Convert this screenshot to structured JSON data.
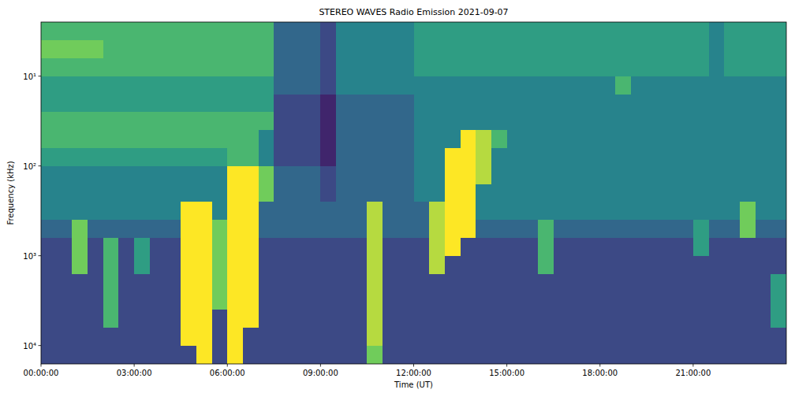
{
  "chart_data": {
    "type": "heatmap",
    "title": "STEREO WAVES Radio Emission 2021-09-07",
    "x_label": "Time (UT)",
    "y_label": "Frequency (kHz)",
    "log": "y",
    "xlim": [
      0,
      24
    ],
    "ylim": [
      16025,
      2.5
    ],
    "xticks": [
      {
        "value": 0,
        "label": "00:00:00"
      },
      {
        "value": 3,
        "label": "03:00:00"
      },
      {
        "value": 6,
        "label": "06:00:00"
      },
      {
        "value": 9,
        "label": "09:00:00"
      },
      {
        "value": 12,
        "label": "12:00:00"
      },
      {
        "value": 15,
        "label": "15:00:00"
      },
      {
        "value": 18,
        "label": "18:00:00"
      },
      {
        "value": 21,
        "label": "21:00:00"
      }
    ],
    "yticks": [
      {
        "value": 10,
        "label": "10¹"
      },
      {
        "value": 100,
        "label": "10²"
      },
      {
        "value": 1000,
        "label": "10³"
      },
      {
        "value": 10000,
        "label": "10⁴"
      }
    ],
    "x": [
      0,
      0.5,
      1,
      1.5,
      2,
      2.5,
      3,
      3.5,
      4,
      4.5,
      5,
      5.5,
      6,
      6.5,
      7,
      7.5,
      8,
      8.5,
      9,
      9.5,
      10,
      10.5,
      11,
      11.5,
      12,
      12.5,
      13,
      13.5,
      14,
      14.5,
      15,
      15.5,
      16,
      16.5,
      17,
      17.5,
      18,
      18.5,
      19,
      19.5,
      20,
      20.5,
      21,
      21.5,
      22,
      22.5,
      23,
      23.5,
      24
    ],
    "y": [
      2.5,
      4,
      6.3,
      10,
      16,
      25,
      40,
      63,
      100,
      160,
      250,
      400,
      630,
      1000,
      1600,
      2500,
      4000,
      6300,
      10000,
      16025
    ],
    "color_range": [
      0,
      9
    ],
    "values": [
      [
        6,
        6,
        6,
        6,
        6,
        6,
        6,
        6,
        6,
        6,
        6,
        6,
        6,
        6,
        6,
        3,
        3,
        3,
        2,
        4,
        4,
        4,
        4,
        4,
        5,
        5,
        5,
        5,
        5,
        5,
        5,
        5,
        5,
        5,
        5,
        5,
        5,
        5,
        5,
        5,
        5,
        5,
        5,
        4,
        5,
        5,
        5,
        5
      ],
      [
        7,
        7,
        7,
        7,
        6,
        6,
        6,
        6,
        6,
        6,
        6,
        6,
        6,
        6,
        6,
        3,
        3,
        3,
        2,
        4,
        4,
        4,
        4,
        4,
        5,
        5,
        5,
        5,
        5,
        5,
        5,
        5,
        5,
        5,
        5,
        5,
        5,
        5,
        5,
        5,
        5,
        5,
        5,
        4,
        5,
        5,
        5,
        5
      ],
      [
        6,
        6,
        6,
        6,
        6,
        6,
        6,
        6,
        6,
        6,
        6,
        6,
        6,
        6,
        6,
        3,
        3,
        3,
        2,
        4,
        4,
        4,
        4,
        4,
        5,
        5,
        5,
        5,
        5,
        5,
        5,
        5,
        5,
        5,
        5,
        5,
        5,
        5,
        5,
        5,
        5,
        5,
        5,
        4,
        5,
        5,
        5,
        5
      ],
      [
        5,
        5,
        5,
        5,
        5,
        5,
        5,
        5,
        5,
        5,
        5,
        5,
        5,
        5,
        5,
        3,
        3,
        3,
        2,
        4,
        4,
        4,
        4,
        4,
        4,
        4,
        4,
        4,
        4,
        4,
        4,
        4,
        4,
        4,
        4,
        4,
        4,
        6,
        4,
        4,
        4,
        4,
        4,
        4,
        4,
        4,
        4,
        4
      ],
      [
        5,
        5,
        5,
        5,
        5,
        5,
        5,
        5,
        5,
        5,
        5,
        5,
        5,
        5,
        5,
        2,
        2,
        2,
        1,
        3,
        3,
        3,
        3,
        3,
        4,
        4,
        4,
        4,
        4,
        4,
        4,
        4,
        4,
        4,
        4,
        4,
        4,
        4,
        4,
        4,
        4,
        4,
        4,
        4,
        4,
        4,
        4,
        4
      ],
      [
        6,
        6,
        6,
        6,
        6,
        6,
        6,
        6,
        6,
        6,
        6,
        6,
        6,
        6,
        6,
        2,
        2,
        2,
        1,
        3,
        3,
        3,
        3,
        3,
        4,
        4,
        4,
        4,
        4,
        4,
        4,
        4,
        4,
        4,
        4,
        4,
        4,
        4,
        4,
        4,
        4,
        4,
        4,
        4,
        4,
        4,
        4,
        4
      ],
      [
        6,
        6,
        6,
        6,
        6,
        6,
        6,
        6,
        6,
        6,
        6,
        6,
        6,
        6,
        4,
        2,
        2,
        2,
        1,
        3,
        3,
        3,
        3,
        3,
        4,
        4,
        4,
        9,
        8,
        6,
        4,
        4,
        4,
        4,
        4,
        4,
        4,
        4,
        4,
        4,
        4,
        4,
        4,
        4,
        4,
        4,
        4,
        4
      ],
      [
        5,
        5,
        5,
        5,
        5,
        5,
        5,
        5,
        5,
        5,
        5,
        5,
        6,
        6,
        4,
        2,
        2,
        2,
        1,
        3,
        3,
        3,
        3,
        3,
        4,
        4,
        9,
        9,
        8,
        4,
        4,
        4,
        4,
        4,
        4,
        4,
        4,
        4,
        4,
        4,
        4,
        4,
        4,
        4,
        4,
        4,
        4,
        4
      ],
      [
        4,
        4,
        4,
        4,
        4,
        4,
        4,
        4,
        4,
        4,
        4,
        4,
        9,
        9,
        7,
        3,
        3,
        3,
        2,
        3,
        3,
        3,
        3,
        3,
        4,
        4,
        9,
        9,
        8,
        4,
        4,
        4,
        4,
        4,
        4,
        4,
        4,
        4,
        4,
        4,
        4,
        4,
        4,
        4,
        4,
        4,
        4,
        4
      ],
      [
        4,
        4,
        4,
        4,
        4,
        4,
        4,
        4,
        4,
        4,
        4,
        4,
        9,
        9,
        7,
        3,
        3,
        3,
        2,
        3,
        3,
        3,
        3,
        3,
        4,
        4,
        9,
        9,
        4,
        4,
        4,
        4,
        4,
        4,
        4,
        4,
        4,
        4,
        4,
        4,
        4,
        4,
        4,
        4,
        4,
        4,
        4,
        4
      ],
      [
        4,
        4,
        4,
        4,
        4,
        4,
        4,
        4,
        4,
        9,
        9,
        4,
        9,
        9,
        3,
        3,
        3,
        3,
        3,
        3,
        3,
        8,
        3,
        3,
        3,
        8,
        9,
        9,
        4,
        4,
        4,
        4,
        4,
        4,
        4,
        4,
        4,
        4,
        4,
        4,
        4,
        4,
        4,
        4,
        4,
        7,
        4,
        4
      ],
      [
        3,
        3,
        7,
        3,
        3,
        3,
        3,
        3,
        3,
        9,
        9,
        7,
        9,
        9,
        3,
        3,
        3,
        3,
        3,
        3,
        3,
        8,
        3,
        3,
        3,
        8,
        9,
        9,
        3,
        3,
        3,
        3,
        6,
        3,
        3,
        3,
        3,
        3,
        3,
        3,
        3,
        3,
        5,
        3,
        3,
        7,
        3,
        3
      ],
      [
        2,
        2,
        7,
        2,
        6,
        2,
        5,
        2,
        2,
        9,
        9,
        7,
        9,
        9,
        2,
        2,
        2,
        2,
        2,
        2,
        2,
        8,
        2,
        2,
        2,
        8,
        9,
        2,
        2,
        2,
        2,
        2,
        6,
        2,
        2,
        2,
        2,
        2,
        2,
        2,
        2,
        2,
        5,
        2,
        2,
        2,
        2,
        2
      ],
      [
        2,
        2,
        7,
        2,
        6,
        2,
        5,
        2,
        2,
        9,
        9,
        7,
        9,
        9,
        2,
        2,
        2,
        2,
        2,
        2,
        2,
        8,
        2,
        2,
        2,
        8,
        2,
        2,
        2,
        2,
        2,
        2,
        6,
        2,
        2,
        2,
        2,
        2,
        2,
        2,
        2,
        2,
        2,
        2,
        2,
        2,
        2,
        2
      ],
      [
        2,
        2,
        2,
        2,
        6,
        2,
        2,
        2,
        2,
        9,
        9,
        7,
        9,
        9,
        2,
        2,
        2,
        2,
        2,
        2,
        2,
        8,
        2,
        2,
        2,
        2,
        2,
        2,
        2,
        2,
        2,
        2,
        2,
        2,
        2,
        2,
        2,
        2,
        2,
        2,
        2,
        2,
        2,
        2,
        2,
        2,
        2,
        5
      ],
      [
        2,
        2,
        2,
        2,
        6,
        2,
        2,
        2,
        2,
        9,
        9,
        7,
        9,
        9,
        2,
        2,
        2,
        2,
        2,
        2,
        2,
        8,
        2,
        2,
        2,
        2,
        2,
        2,
        2,
        2,
        2,
        2,
        2,
        2,
        2,
        2,
        2,
        2,
        2,
        2,
        2,
        2,
        2,
        2,
        2,
        2,
        2,
        5
      ],
      [
        2,
        2,
        2,
        2,
        6,
        2,
        2,
        2,
        2,
        9,
        9,
        2,
        9,
        9,
        2,
        2,
        2,
        2,
        2,
        2,
        2,
        8,
        2,
        2,
        2,
        2,
        2,
        2,
        2,
        2,
        2,
        2,
        2,
        2,
        2,
        2,
        2,
        2,
        2,
        2,
        2,
        2,
        2,
        2,
        2,
        2,
        2,
        5
      ],
      [
        2,
        2,
        2,
        2,
        2,
        2,
        2,
        2,
        2,
        9,
        9,
        2,
        9,
        2,
        2,
        2,
        2,
        2,
        2,
        2,
        2,
        8,
        2,
        2,
        2,
        2,
        2,
        2,
        2,
        2,
        2,
        2,
        2,
        2,
        2,
        2,
        2,
        2,
        2,
        2,
        2,
        2,
        2,
        2,
        2,
        2,
        2,
        2
      ],
      [
        2,
        2,
        2,
        2,
        2,
        2,
        2,
        2,
        2,
        2,
        9,
        2,
        9,
        2,
        2,
        2,
        2,
        2,
        2,
        2,
        2,
        7,
        2,
        2,
        2,
        2,
        2,
        2,
        2,
        2,
        2,
        2,
        2,
        2,
        2,
        2,
        2,
        2,
        2,
        2,
        2,
        2,
        2,
        2,
        2,
        2,
        2,
        2
      ]
    ]
  }
}
